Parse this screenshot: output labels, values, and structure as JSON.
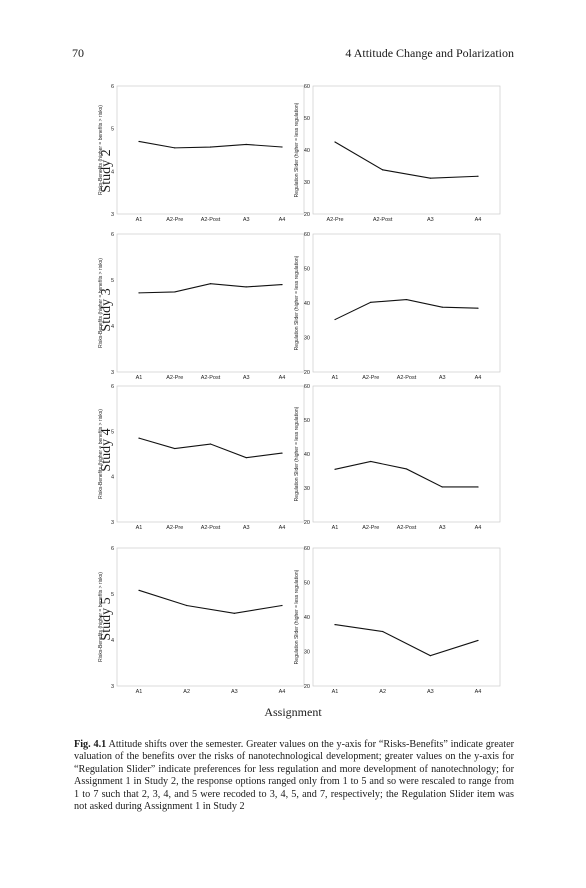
{
  "page": {
    "number": "70",
    "chapter_title": "4   Attitude Change and Polarization",
    "x_axis_title": "Assignment",
    "caption_label": "Fig. 4.1",
    "caption_text": "Attitude shifts over the semester. Greater values on the y-axis for “Risks-Benefits” indicate greater valuation of the benefits over the risks of nanotechnological development; greater values on the y-axis for “Regulation Slider” indicate preferences for less regulation and more development of nanotechnology; for Assignment 1 in Study 2, the response options ranged only from 1 to 5 and so were rescaled to range from 1 to 7 such that 2, 3, 4, and 5 were recoded to 3, 4, 5, and 7, respectively; the Regulation Slider item was not asked during Assignment 1 in Study 2"
  },
  "studies": [
    "Study 2",
    "Study 3",
    "Study 4",
    "Study 5"
  ],
  "chart_data": [
    {
      "id": "s2-rb",
      "type": "line",
      "row": 0,
      "col": 0,
      "ylabel": "Risks-Benefits (higher = benefits > risks)",
      "categories": [
        "A1",
        "A2-Pre",
        "A2-Post",
        "A3",
        "A4"
      ],
      "values": [
        4.7,
        4.55,
        4.57,
        4.63,
        4.57
      ],
      "ylim": [
        3,
        6
      ],
      "yticks": [
        3,
        4,
        5,
        6
      ]
    },
    {
      "id": "s2-reg",
      "type": "line",
      "row": 0,
      "col": 1,
      "ylabel": "Regulation Slider (higher = less regulation)",
      "categories": [
        "A2-Pre",
        "A2-Post",
        "A3",
        "A4"
      ],
      "values": [
        42.5,
        33.8,
        31.2,
        31.8
      ],
      "ylim": [
        20,
        60
      ],
      "yticks": [
        20,
        30,
        40,
        50,
        60
      ]
    },
    {
      "id": "s3-rb",
      "type": "line",
      "row": 1,
      "col": 0,
      "ylabel": "Risks-Benefits (higher = benefits > risks)",
      "categories": [
        "A1",
        "A2-Pre",
        "A2-Post",
        "A3",
        "A4"
      ],
      "values": [
        4.72,
        4.74,
        4.92,
        4.85,
        4.9
      ],
      "ylim": [
        3,
        6
      ],
      "yticks": [
        3,
        4,
        5,
        6
      ]
    },
    {
      "id": "s3-reg",
      "type": "line",
      "row": 1,
      "col": 1,
      "ylabel": "Regulation Slider (higher = less regulation)",
      "categories": [
        "A1",
        "A2-Pre",
        "A2-Post",
        "A3",
        "A4"
      ],
      "values": [
        35.2,
        40.2,
        41.0,
        38.8,
        38.5
      ],
      "ylim": [
        20,
        60
      ],
      "yticks": [
        20,
        30,
        40,
        50,
        60
      ]
    },
    {
      "id": "s4-rb",
      "type": "line",
      "row": 2,
      "col": 0,
      "ylabel": "Risks-Benefits (higher = benefits > risks)",
      "categories": [
        "A1",
        "A2-Pre",
        "A2-Post",
        "A3",
        "A4"
      ],
      "values": [
        4.85,
        4.62,
        4.72,
        4.42,
        4.52
      ],
      "ylim": [
        3,
        6
      ],
      "yticks": [
        3,
        4,
        5,
        6
      ]
    },
    {
      "id": "s4-reg",
      "type": "line",
      "row": 2,
      "col": 1,
      "ylabel": "Regulation Slider (higher = less regulation)",
      "categories": [
        "A1",
        "A2-Pre",
        "A2-Post",
        "A3",
        "A4"
      ],
      "values": [
        35.5,
        37.8,
        35.6,
        30.3,
        30.3
      ],
      "ylim": [
        20,
        60
      ],
      "yticks": [
        20,
        30,
        40,
        50,
        60
      ]
    },
    {
      "id": "s5-rb",
      "type": "line",
      "row": 3,
      "col": 0,
      "ylabel": "Risks-Benefits (higher = benefits > risks)",
      "categories": [
        "A1",
        "A2",
        "A3",
        "A4"
      ],
      "values": [
        5.08,
        4.75,
        4.58,
        4.75
      ],
      "ylim": [
        3,
        6
      ],
      "yticks": [
        3,
        4,
        5,
        6
      ]
    },
    {
      "id": "s5-reg",
      "type": "line",
      "row": 3,
      "col": 1,
      "ylabel": "Regulation Slider (higher = less regulation)",
      "categories": [
        "A1",
        "A2",
        "A3",
        "A4"
      ],
      "values": [
        37.8,
        35.8,
        28.8,
        33.2
      ],
      "ylim": [
        20,
        60
      ],
      "yticks": [
        20,
        30,
        40,
        50,
        60
      ]
    }
  ]
}
